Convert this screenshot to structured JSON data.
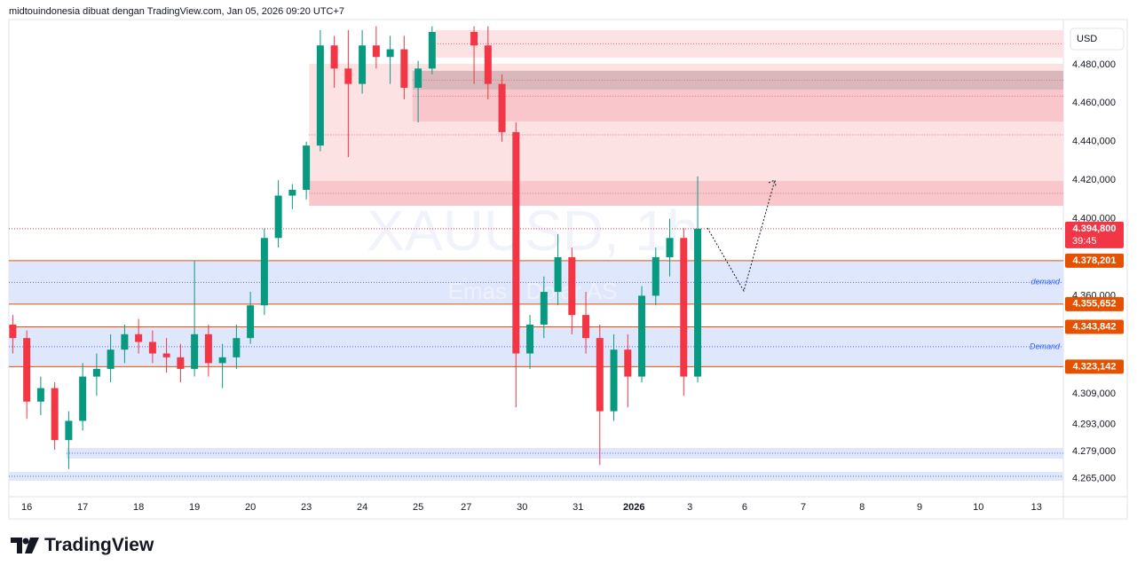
{
  "header": {
    "caption": "midtouindonesia dibuat dengan TradingView.com, Jan 05, 2026 09:20 UTC+7"
  },
  "chart_data": {
    "type": "candlestick",
    "watermark": "XAUUSD, 1h",
    "watermark_sub": "Emas / Dolar AS",
    "currency": "USD",
    "up_color": "#089981",
    "down_color": "#f23645",
    "x": [
      -0.25,
      0,
      0.25,
      0.5,
      0.75,
      1,
      1.25,
      1.5,
      1.75,
      2,
      2.25,
      2.5,
      2.75,
      3,
      3.25,
      3.5,
      3.75,
      4,
      4.25,
      4.5,
      4.75,
      5,
      5.25,
      5.5,
      5.75,
      6,
      6.25,
      6.5,
      6.75,
      7,
      7.25,
      8,
      8.25,
      8.5,
      8.75,
      9,
      9.25,
      9.5,
      9.75,
      10,
      10.25,
      10.5,
      10.75,
      11,
      11.25,
      11.5,
      11.75,
      12
    ],
    "open": [
      4345,
      4338,
      4305,
      4312,
      4285,
      4295,
      4318,
      4322,
      4332,
      4340,
      4336,
      4330,
      4328,
      4322,
      4340,
      4325,
      4328,
      4338,
      4355,
      4390,
      4412,
      4415,
      4438,
      4490,
      4478,
      4470,
      4490,
      4484,
      4488,
      4468,
      4478,
      4497,
      4490,
      4470,
      4445,
      4330,
      4345,
      4362,
      4380,
      4350,
      4338,
      4300,
      4332,
      4318,
      4360,
      4380,
      4390,
      4318
    ],
    "high": [
      4350,
      4342,
      4318,
      4315,
      4300,
      4325,
      4330,
      4340,
      4345,
      4348,
      4342,
      4338,
      4335,
      4378,
      4345,
      4335,
      4345,
      4362,
      4395,
      4420,
      4418,
      4440,
      4498,
      4495,
      4498,
      4498,
      4500,
      4495,
      4495,
      4482,
      4500,
      4500,
      4500,
      4475,
      4450,
      4350,
      4370,
      4392,
      4385,
      4362,
      4345,
      4340,
      4340,
      4365,
      4385,
      4400,
      4395,
      4422
    ],
    "low": [
      4330,
      4296,
      4298,
      4280,
      4270,
      4290,
      4308,
      4315,
      4325,
      4330,
      4325,
      4320,
      4315,
      4318,
      4318,
      4312,
      4322,
      4335,
      4350,
      4385,
      4405,
      4410,
      4435,
      4468,
      4432,
      4465,
      4478,
      4470,
      4462,
      4450,
      4475,
      4470,
      4462,
      4440,
      4302,
      4322,
      4338,
      4355,
      4340,
      4330,
      4272,
      4295,
      4302,
      4315,
      4355,
      4370,
      4308,
      4315
    ],
    "close": [
      4338,
      4305,
      4312,
      4285,
      4295,
      4318,
      4322,
      4332,
      4340,
      4336,
      4330,
      4328,
      4322,
      4340,
      4325,
      4328,
      4338,
      4355,
      4390,
      4412,
      4415,
      4438,
      4490,
      4478,
      4470,
      4490,
      4484,
      4488,
      4468,
      4478,
      4497,
      4490,
      4470,
      4445,
      4330,
      4345,
      4362,
      4380,
      4350,
      4338,
      4300,
      4332,
      4318,
      4360,
      4380,
      4390,
      4318,
      4394.8
    ],
    "xlim": [
      -0.32,
      18.54
    ],
    "xticks": [
      {
        "value": 0,
        "label": "16"
      },
      {
        "value": 1,
        "label": "17"
      },
      {
        "value": 2,
        "label": "18"
      },
      {
        "value": 3,
        "label": "19"
      },
      {
        "value": 4,
        "label": "20"
      },
      {
        "value": 5,
        "label": "23"
      },
      {
        "value": 6,
        "label": "24"
      },
      {
        "value": 7,
        "label": "25"
      },
      {
        "value": 7.86,
        "label": "27"
      },
      {
        "value": 8.86,
        "label": "30"
      },
      {
        "value": 9.86,
        "label": "31"
      },
      {
        "value": 10.86,
        "label": "2026"
      },
      {
        "value": 11.86,
        "label": "3"
      },
      {
        "value": 12.84,
        "label": "6"
      },
      {
        "value": 13.89,
        "label": "7"
      },
      {
        "value": 14.94,
        "label": "8"
      },
      {
        "value": 15.97,
        "label": "9"
      },
      {
        "value": 17.02,
        "label": "10"
      },
      {
        "value": 18.06,
        "label": "13"
      }
    ],
    "ylim": [
      4255.6,
      4500.7
    ],
    "yticks": [
      {
        "value": 4480,
        "label": "4.480,000"
      },
      {
        "value": 4460,
        "label": "4.460,000"
      },
      {
        "value": 4440,
        "label": "4.440,000"
      },
      {
        "value": 4420,
        "label": "4.420,000"
      },
      {
        "value": 4400,
        "label": "4.400,000"
      },
      {
        "value": 4360,
        "label": "4.360,000"
      },
      {
        "value": 4309,
        "label": "4.309,000"
      },
      {
        "value": 4293,
        "label": "4.293,000"
      },
      {
        "value": 4279,
        "label": "4.279,000"
      },
      {
        "value": 4265,
        "label": "4.265,000"
      }
    ],
    "levels": [
      {
        "value": 4378.201,
        "label": "4.378,201"
      },
      {
        "value": 4355.652,
        "label": "4.355,652"
      },
      {
        "value": 4343.842,
        "label": "4.343,842"
      },
      {
        "value": 4323.142,
        "label": "4.323,142"
      }
    ],
    "level_color": "#e65100",
    "last_price": {
      "value": 4394.8,
      "label": "4.394,800",
      "countdown": "39:45"
    },
    "zones": [
      {
        "x": [
          7.3,
          18.54
        ],
        "price": [
          4483.7,
          4498
        ],
        "color": "#fde2e4"
      },
      {
        "x": [
          5.05,
          18.54
        ],
        "price": [
          4406.7,
          4480.5
        ],
        "color": "#fde2e4"
      },
      {
        "x": [
          6.9,
          18.54
        ],
        "price": [
          4450.5,
          4476.8
        ],
        "color": "#f9c6cb"
      },
      {
        "x": [
          6.9,
          18.54
        ],
        "price": [
          4467.1,
          4476.8
        ],
        "color": "#d9b7ba"
      },
      {
        "x": [
          5.05,
          18.54
        ],
        "price": [
          4406.7,
          4419.6
        ],
        "color": "#f9c6cb"
      },
      {
        "x": [
          -0.32,
          18.54
        ],
        "price": [
          4355.652,
          4378.201
        ],
        "color": "#dfe7fc",
        "label": "demand"
      },
      {
        "x": [
          -0.32,
          18.54
        ],
        "price": [
          4323.142,
          4343.842
        ],
        "color": "#dfe7fc",
        "label": "Demand"
      },
      {
        "x": [
          0.71,
          18.54
        ],
        "price": [
          4275.4,
          4280.9
        ],
        "color": "#dfe7fc"
      },
      {
        "x": [
          -0.32,
          18.54
        ],
        "price": [
          4263.9,
          4268.5
        ],
        "color": "#dfe7fc"
      }
    ]
  },
  "footer": {
    "brand": "TradingView"
  }
}
